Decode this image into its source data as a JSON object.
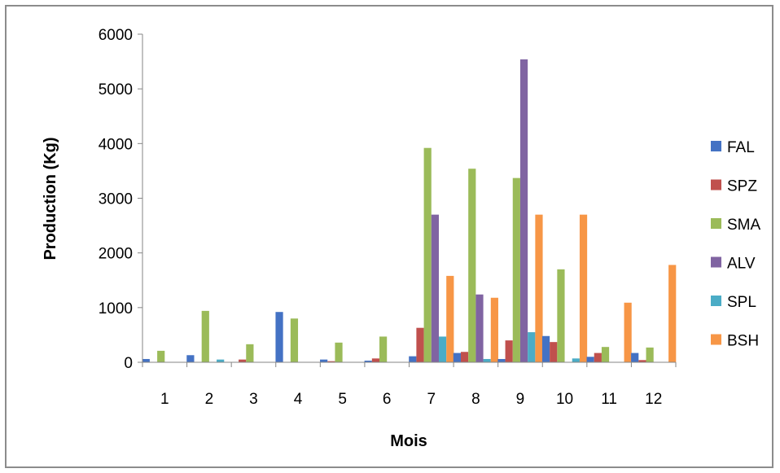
{
  "chart_data": {
    "type": "bar",
    "title": "",
    "xlabel": "Mois",
    "ylabel": "Production (Kg)",
    "ylim": [
      0,
      6000
    ],
    "yticks": [
      "0",
      "1000",
      "2000",
      "3000",
      "4000",
      "5000",
      "6000"
    ],
    "categories": [
      "1",
      "2",
      "3",
      "4",
      "5",
      "6",
      "7",
      "8",
      "9",
      "10",
      "11",
      "12"
    ],
    "legend_position": "right",
    "grid": false,
    "series": [
      {
        "name": "FAL",
        "color": "#4472C4",
        "values": [
          60,
          130,
          0,
          920,
          50,
          30,
          110,
          170,
          60,
          480,
          100,
          170
        ]
      },
      {
        "name": "SPZ",
        "color": "#C0504D",
        "values": [
          0,
          0,
          50,
          0,
          20,
          70,
          630,
          190,
          400,
          370,
          170,
          40
        ]
      },
      {
        "name": "SMA",
        "color": "#9BBB59",
        "values": [
          210,
          940,
          330,
          800,
          360,
          470,
          3920,
          3540,
          3370,
          1700,
          280,
          270
        ]
      },
      {
        "name": "ALV",
        "color": "#8064A2",
        "values": [
          0,
          0,
          0,
          0,
          0,
          0,
          2700,
          1240,
          5540,
          0,
          0,
          0
        ]
      },
      {
        "name": "SPL",
        "color": "#4BACC6",
        "values": [
          0,
          50,
          0,
          0,
          0,
          0,
          470,
          60,
          550,
          70,
          0,
          0
        ]
      },
      {
        "name": "BSH",
        "color": "#F79646",
        "values": [
          0,
          0,
          0,
          0,
          0,
          0,
          1580,
          1180,
          2700,
          2700,
          1090,
          1780
        ]
      }
    ]
  }
}
